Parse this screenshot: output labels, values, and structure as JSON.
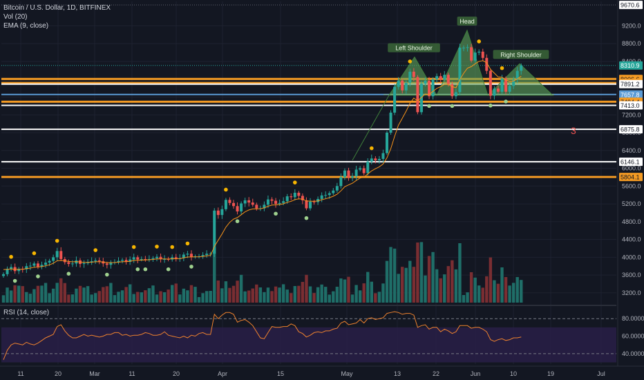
{
  "header": {
    "title": "Bitcoin / U.S. Dollar, 1D, BITFINEX",
    "volume_label": "Vol (20)",
    "ema_label": "EMA (9, close)",
    "rsi_label": "RSI (14, close)"
  },
  "colors": {
    "bg": "#131722",
    "up": "#26a69a",
    "down": "#ef5350",
    "vol_up": "#1f6e68",
    "vol_down": "#7a2e32",
    "ema": "#f7931a",
    "orange_level": "#f59b23",
    "white_level": "#ffffff",
    "blue_level": "#5b9bd5",
    "pattern_fill": "#5fa35c",
    "rsi_line": "#f0832e",
    "rsi_band": "#2a1f4a",
    "annotation_red": "#ef5350"
  },
  "chart_data": [
    {
      "type": "candlestick",
      "title": "Bitcoin / U.S. Dollar, 1D, BITFINEX",
      "x_ticks": [
        "11",
        "20",
        "Mar",
        "11",
        "20",
        "Apr",
        "15",
        "May",
        "13",
        "22",
        "Jun",
        "10",
        "19",
        "Jul"
      ],
      "y_ticks": [
        3200,
        3600,
        4000,
        4400,
        4800,
        5200,
        5600,
        6000,
        6400,
        6800,
        7200,
        7600,
        8000,
        8400,
        8800,
        9200
      ],
      "ylim": [
        2950,
        9750
      ],
      "candles_close": [
        3620,
        3740,
        3780,
        3690,
        3740,
        3730,
        3800,
        3810,
        3860,
        3790,
        3830,
        3880,
        3920,
        4000,
        4140,
        3960,
        3890,
        3850,
        3860,
        3930,
        3850,
        3870,
        3880,
        3910,
        3930,
        3910,
        3860,
        3830,
        3880,
        3890,
        3920,
        3940,
        3900,
        3950,
        4000,
        3950,
        3960,
        3950,
        3960,
        3980,
        4010,
        3960,
        3960,
        3950,
        4000,
        3960,
        3980,
        4060,
        4080,
        4010,
        4020,
        4020,
        4050,
        4080,
        4080,
        5050,
        4950,
        5080,
        5290,
        5220,
        5150,
        5030,
        5210,
        5280,
        5230,
        5180,
        5100,
        5100,
        5180,
        5300,
        5270,
        5200,
        5220,
        5260,
        5370,
        5350,
        5450,
        5380,
        5280,
        5100,
        5250,
        5240,
        5310,
        5390,
        5400,
        5440,
        5500,
        5600,
        5800,
        5950,
        5790,
        5820,
        5970,
        6000,
        5890,
        6150,
        6220,
        6180,
        6210,
        6340,
        6800,
        7250,
        7830,
        7970,
        7750,
        7920,
        8170,
        8050,
        7260,
        7900,
        7970,
        7620,
        8000,
        8070,
        7990,
        8100,
        7890,
        7620,
        7710,
        8710,
        8710,
        8720,
        8420,
        8600,
        8620,
        8480,
        8190,
        7630,
        7790,
        7720,
        8020,
        7720,
        7850,
        7990,
        8190,
        8310
      ],
      "ema_start": 3750,
      "level_lines": [
        {
          "price": 9670.6,
          "label": "9670.6",
          "kind": "price-top"
        },
        {
          "price": 8310.9,
          "label": "8310.9",
          "kind": "last-price"
        },
        {
          "price": 8006.6,
          "label": "8006.6",
          "kind": "orange"
        },
        {
          "price": 7916.7,
          "label": "7916.7",
          "kind": "orange"
        },
        {
          "price": 7891.2,
          "label": "7891.2",
          "kind": "white"
        },
        {
          "price": 7657.8,
          "label": "7657.8",
          "kind": "blue"
        },
        {
          "price": 7494.4,
          "label": "7494.4",
          "kind": "orange"
        },
        {
          "price": 7413.0,
          "label": "7413.0",
          "kind": "white"
        },
        {
          "price": 6875.8,
          "label": "6875.8",
          "kind": "white"
        },
        {
          "price": 6146.1,
          "label": "6146.1",
          "kind": "white"
        },
        {
          "price": 5804.1,
          "label": "5804.1",
          "kind": "orange"
        }
      ],
      "annotations": [
        {
          "text": "Left Shoulder"
        },
        {
          "text": "Head"
        },
        {
          "text": "Right Shoulder"
        },
        {
          "text": "3"
        }
      ]
    },
    {
      "type": "line",
      "title": "RSI (14, close)",
      "y_ticks": [
        40,
        60,
        80
      ],
      "y_tick_labels": [
        "40.0000",
        "60.0000",
        "80.0000"
      ],
      "ylim": [
        28,
        92
      ],
      "band": [
        30,
        70
      ],
      "values": [
        33,
        44,
        50,
        52,
        51,
        50,
        53,
        51,
        50,
        52,
        55,
        58,
        60,
        62,
        71,
        73,
        66,
        61,
        58,
        58,
        60,
        62,
        60,
        61,
        60,
        59,
        60,
        62,
        62,
        64,
        64,
        61,
        62,
        60,
        61,
        61,
        62,
        64,
        63,
        61,
        61,
        62,
        65,
        61,
        60,
        59,
        58,
        60,
        58,
        61,
        60,
        63,
        64,
        62,
        62,
        85,
        80,
        84,
        87,
        87,
        85,
        76,
        78,
        79,
        76,
        72,
        65,
        58,
        57,
        64,
        71,
        70,
        70,
        71,
        71,
        74,
        72,
        65,
        63,
        59,
        61,
        64,
        65,
        64,
        66,
        66,
        68,
        69,
        75,
        77,
        73,
        74,
        75,
        79,
        75,
        80,
        81,
        79,
        80,
        81,
        86,
        87,
        88,
        87,
        85,
        86,
        86,
        84,
        70,
        72,
        73,
        68,
        70,
        70,
        65,
        68,
        66,
        63,
        65,
        72,
        72,
        72,
        69,
        70,
        70,
        68,
        65,
        56,
        54,
        56,
        57,
        55,
        56,
        58,
        58,
        59
      ]
    }
  ],
  "patterns": {
    "left_shoulder": "Left Shoulder",
    "head": "Head",
    "right_shoulder": "Right Shoulder",
    "count_mark": "3"
  }
}
